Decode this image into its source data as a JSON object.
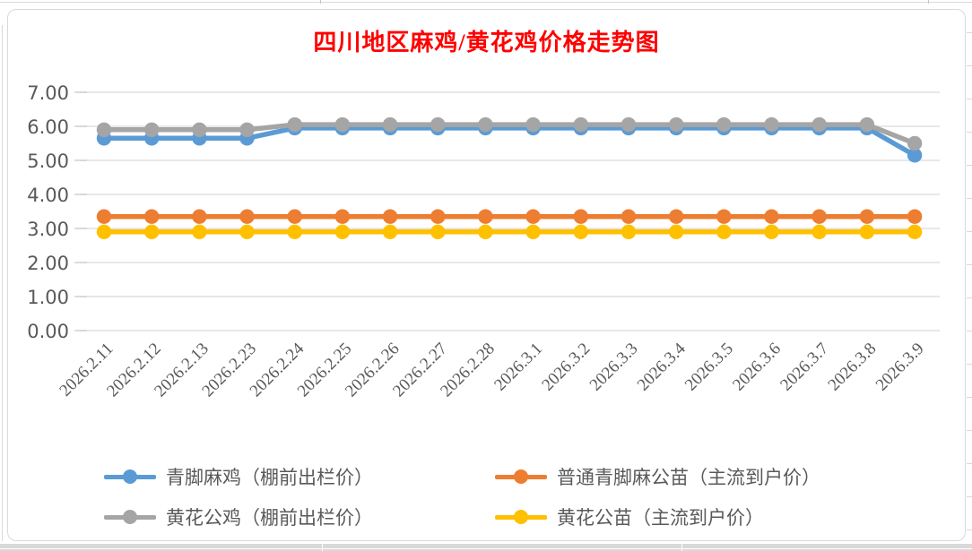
{
  "chart_data": {
    "type": "line",
    "title": "四川地区麻鸡/黄花鸡价格走势图",
    "title_color": "#FF0000",
    "categories": [
      "2026.2.11",
      "2026.2.12",
      "2026.2.13",
      "2026.2.23",
      "2026.2.24",
      "2026.2.25",
      "2026.2.26",
      "2026.2.27",
      "2026.2.28",
      "2026.3.1",
      "2026.3.2",
      "2026.3.3",
      "2026.3.4",
      "2026.3.5",
      "2026.3.6",
      "2026.3.7",
      "2026.3.8",
      "2026.3.9"
    ],
    "series": [
      {
        "name": "青脚麻鸡（棚前出栏价）",
        "color": "#5B9BD5",
        "values": [
          5.65,
          5.65,
          5.65,
          5.65,
          5.95,
          5.95,
          5.95,
          5.95,
          5.95,
          5.95,
          5.95,
          5.95,
          5.95,
          5.95,
          5.95,
          5.95,
          5.95,
          5.15
        ]
      },
      {
        "name": "普通青脚麻公苗（主流到户价）",
        "color": "#ED7D31",
        "values": [
          3.35,
          3.35,
          3.35,
          3.35,
          3.35,
          3.35,
          3.35,
          3.35,
          3.35,
          3.35,
          3.35,
          3.35,
          3.35,
          3.35,
          3.35,
          3.35,
          3.35,
          3.35
        ]
      },
      {
        "name": "黄花公鸡（棚前出栏价）",
        "color": "#A5A5A5",
        "values": [
          5.9,
          5.9,
          5.9,
          5.9,
          6.05,
          6.05,
          6.05,
          6.05,
          6.05,
          6.05,
          6.05,
          6.05,
          6.05,
          6.05,
          6.05,
          6.05,
          6.05,
          5.5
        ]
      },
      {
        "name": "黄花公苗（主流到户价）",
        "color": "#FFC000",
        "values": [
          2.9,
          2.9,
          2.9,
          2.9,
          2.9,
          2.9,
          2.9,
          2.9,
          2.9,
          2.9,
          2.9,
          2.9,
          2.9,
          2.9,
          2.9,
          2.9,
          2.9,
          2.9
        ]
      }
    ],
    "ylim": [
      0,
      7
    ],
    "yticks": [
      "0.00",
      "1.00",
      "2.00",
      "3.00",
      "4.00",
      "5.00",
      "6.00",
      "7.00"
    ],
    "grid": "horizontal-only",
    "gridline_color": "#D9D9D9",
    "axis_label_color": "#595959",
    "legend_position": "bottom",
    "x_label_rotation_deg": -45
  }
}
